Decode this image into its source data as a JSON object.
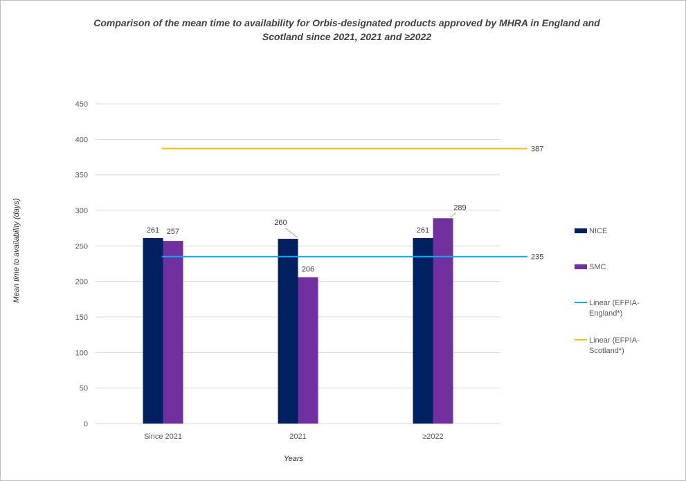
{
  "chart_data": {
    "type": "bar",
    "title": "Comparison of the mean time to availability for Orbis-designated products approved by MHRA in England and Scotland since 2021, 2021 and ≥2022",
    "xlabel": "Years",
    "ylabel": "Mean time to availability (days)",
    "categories": [
      "Since 2021",
      "2021",
      "≥2022"
    ],
    "ylim": [
      0,
      450
    ],
    "yticks": [
      0,
      50,
      100,
      150,
      200,
      250,
      300,
      350,
      400,
      450
    ],
    "grid": true,
    "legend_position": "right",
    "series": [
      {
        "name": "NICE",
        "values": [
          261,
          260,
          261
        ],
        "color": "#002060"
      },
      {
        "name": "SMC",
        "values": [
          257,
          206,
          289
        ],
        "color": "#7030a0"
      }
    ],
    "lines": [
      {
        "name": "Linear (EFPIA-England*)",
        "legend_lines": [
          "Linear (EFPIA-",
          "England*)"
        ],
        "value": 235,
        "label": "235",
        "color": "#00b0f0"
      },
      {
        "name": "Linear (EFPIA-Scotland*)",
        "legend_lines": [
          "Linear (EFPIA-",
          "Scotland*)"
        ],
        "value": 387,
        "label": "387",
        "color": "#ffc000"
      }
    ]
  }
}
